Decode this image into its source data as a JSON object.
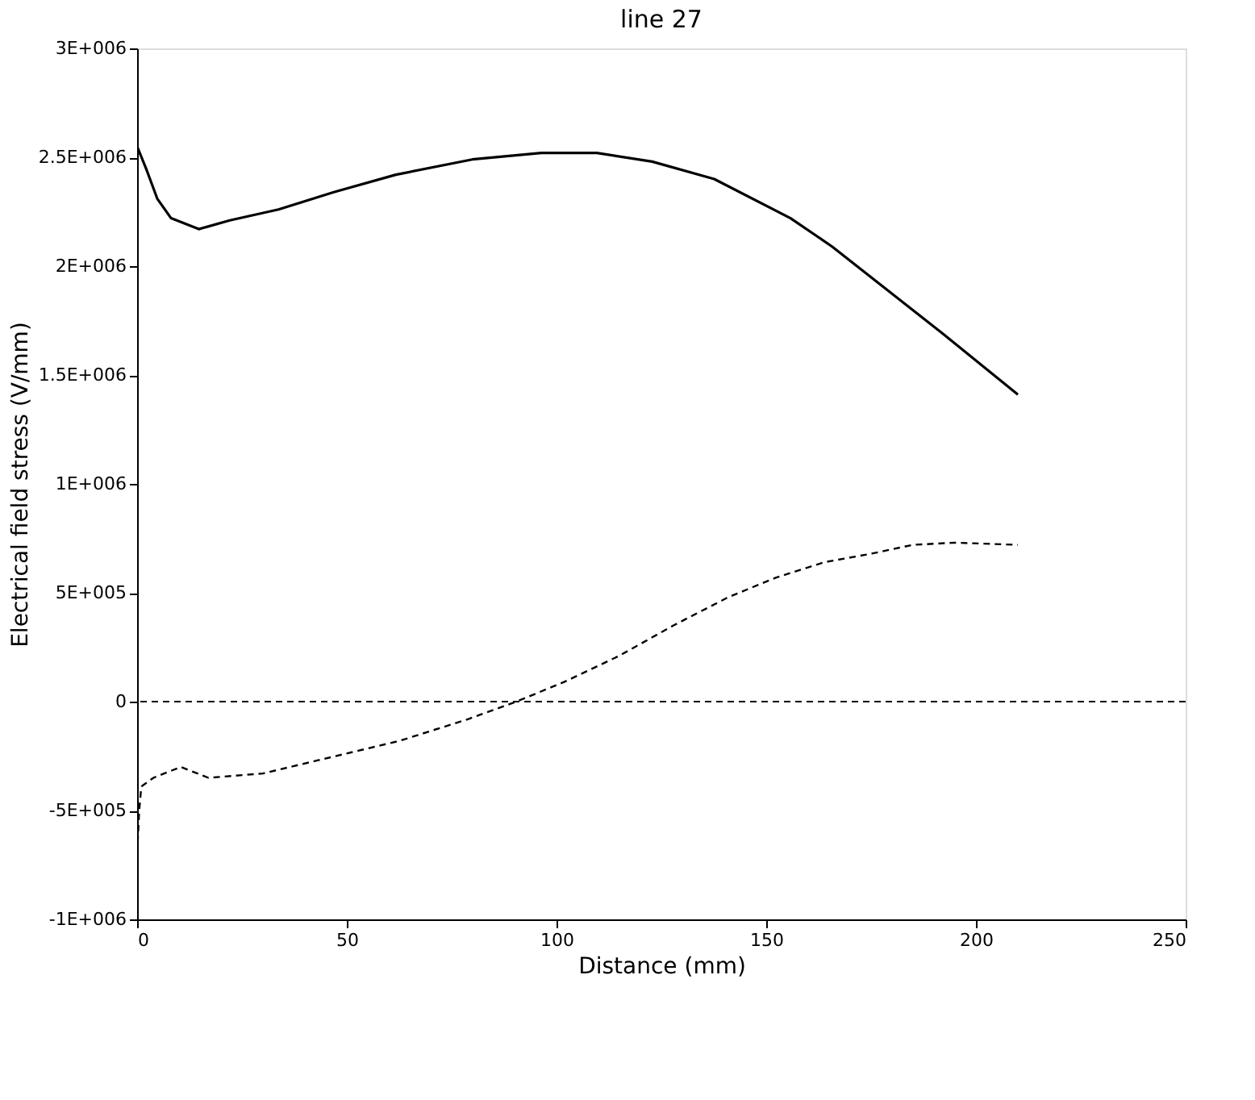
{
  "chart_data": {
    "type": "line",
    "title": "line 27",
    "xlabel": "Distance (mm)",
    "ylabel": "Electrical field stress (V/mm)",
    "xlim": [
      0,
      250
    ],
    "xticks": [
      0,
      50,
      100,
      150,
      200,
      250
    ],
    "ylim": [
      -1000000,
      3000000
    ],
    "yticks": [
      {
        "value": -1000000,
        "label": "-1E+006"
      },
      {
        "value": -500000,
        "label": "-5E+005"
      },
      0,
      {
        "value": 500000,
        "label": "5E+005"
      },
      {
        "value": 1000000,
        "label": "1E+006"
      },
      {
        "value": 1500000,
        "label": "1.5E+006"
      },
      {
        "value": 2000000,
        "label": "2E+006"
      },
      {
        "value": 2500000,
        "label": "2.5E+006"
      },
      {
        "value": 3000000,
        "label": "3E+006"
      }
    ],
    "grid": false,
    "series": [
      {
        "color": "#000000",
        "line_style": "solid",
        "x": [
          0,
          2.3,
          4.8,
          8.1,
          14.7,
          22.1,
          33.7,
          46.9,
          61.7,
          79.9,
          96.4,
          109.6,
          122.8,
          137.6,
          155.8,
          165.7,
          178.9,
          192.1,
          210
        ],
        "values": [
          2550000,
          2440000,
          2310000,
          2220000,
          2170000,
          2210000,
          2260000,
          2340000,
          2420000,
          2490000,
          2520000,
          2520000,
          2480000,
          2400000,
          2220000,
          2090000,
          1890000,
          1690000,
          1410000
        ]
      },
      {
        "color": "#000000",
        "line_style": "dashed",
        "x": [
          0,
          0.5,
          1,
          3.9,
          10.4,
          17,
          30,
          43,
          62.6,
          79,
          90.4,
          101.8,
          114.9,
          127.9,
          141,
          152.4,
          163.8,
          175.2,
          185,
          195,
          210
        ],
        "values": [
          -700000,
          -500000,
          -390000,
          -350000,
          -300000,
          -350000,
          -330000,
          -270000,
          -180000,
          -80000,
          0,
          90000,
          210000,
          350000,
          480000,
          570000,
          640000,
          680000,
          720000,
          730000,
          720000
        ]
      }
    ],
    "ref_lines": [
      {
        "axis": "y",
        "value": 0,
        "line_style": "dashed",
        "color": "#000000"
      }
    ]
  }
}
